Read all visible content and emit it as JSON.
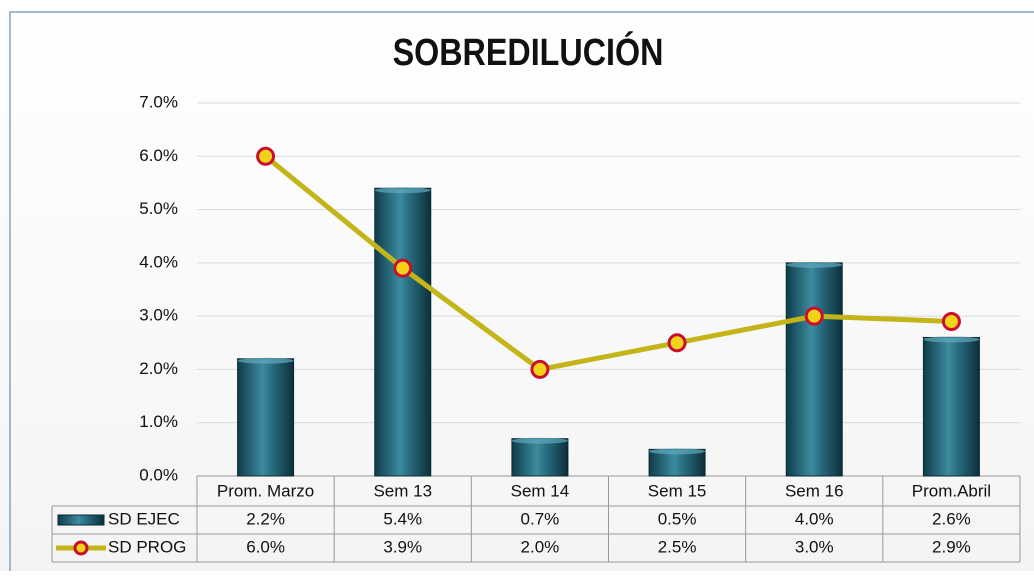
{
  "chart_data": {
    "type": "bar_line_table",
    "title": "SOBREDILUCIÓN",
    "categories": [
      "Prom. Marzo",
      "Sem 13",
      "Sem 14",
      "Sem 15",
      "Sem 16",
      "Prom.Abril"
    ],
    "series": [
      {
        "name": "SD EJEC",
        "type": "bar",
        "color": "#2a6f82",
        "values": [
          2.2,
          5.4,
          0.7,
          0.5,
          4.0,
          2.6
        ],
        "value_labels": [
          "2.2%",
          "5.4%",
          "0.7%",
          "0.5%",
          "4.0%",
          "2.6%"
        ]
      },
      {
        "name": "SD PROG",
        "type": "line",
        "color": "#c3b418",
        "marker_color": "#c8102e",
        "values": [
          6.0,
          3.9,
          2.0,
          2.5,
          3.0,
          2.9
        ],
        "value_labels": [
          "6.0%",
          "3.9%",
          "2.0%",
          "2.5%",
          "3.0%",
          "2.9%"
        ]
      }
    ],
    "ylim": [
      0,
      7
    ],
    "yticks": [
      {
        "value": 0,
        "label": "0.0%"
      },
      {
        "value": 1,
        "label": "1.0%"
      },
      {
        "value": 2,
        "label": "2.0%"
      },
      {
        "value": 3,
        "label": "3.0%"
      },
      {
        "value": 4,
        "label": "4.0%"
      },
      {
        "value": 5,
        "label": "5.0%"
      },
      {
        "value": 6,
        "label": "6.0%"
      },
      {
        "value": 7,
        "label": "7.0%"
      }
    ],
    "grid": true
  }
}
